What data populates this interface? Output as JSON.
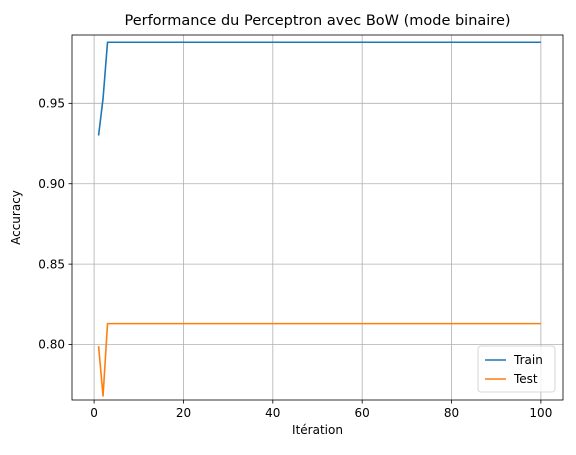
{
  "chart_data": {
    "type": "line",
    "title": "Performance du Perceptron avec BoW (mode binaire)",
    "xlabel": "Itération",
    "ylabel": "Accuracy",
    "xlim": [
      -4.95,
      104.95
    ],
    "ylim": [
      0.7655,
      0.9925
    ],
    "xticks": [
      0,
      20,
      40,
      60,
      80,
      100
    ],
    "yticks": [
      0.8,
      0.85,
      0.9,
      0.95
    ],
    "xtick_labels": [
      "0",
      "20",
      "40",
      "60",
      "80",
      "100"
    ],
    "ytick_labels": [
      "0.80",
      "0.85",
      "0.90",
      "0.95"
    ],
    "grid": true,
    "legend_position": "lower-right",
    "series": [
      {
        "name": "Train",
        "color": "#1f77b4",
        "points": [
          [
            1,
            0.93
          ],
          [
            2,
            0.953
          ],
          [
            3,
            0.988
          ],
          [
            100,
            0.988
          ]
        ]
      },
      {
        "name": "Test",
        "color": "#ff7f0e",
        "points": [
          [
            1,
            0.799
          ],
          [
            2,
            0.768
          ],
          [
            3,
            0.813
          ],
          [
            100,
            0.813
          ]
        ]
      }
    ]
  }
}
